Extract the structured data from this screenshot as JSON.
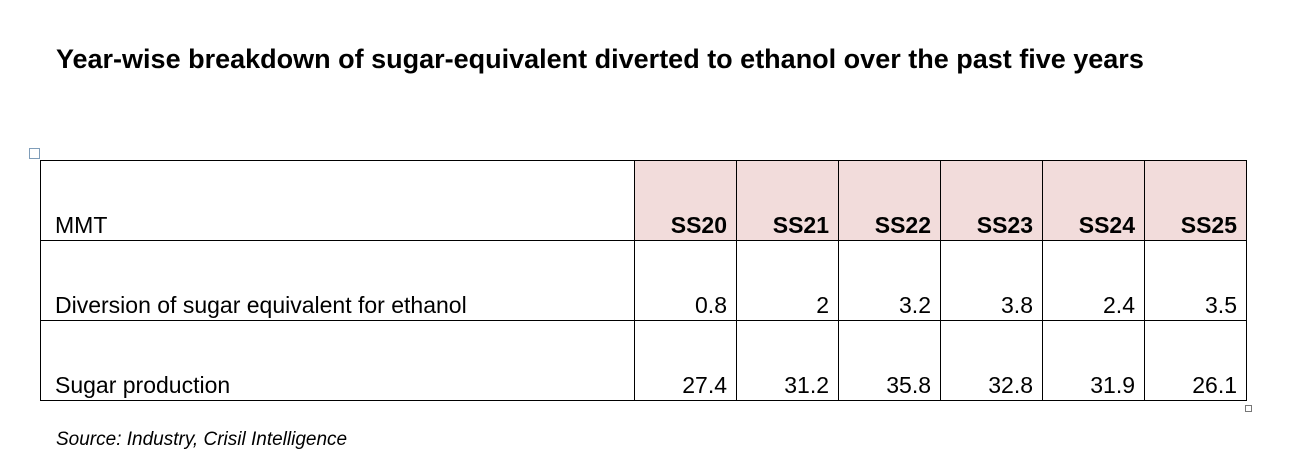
{
  "header": {
    "title": "Year-wise breakdown of sugar-equivalent diverted to ethanol over the past five years"
  },
  "table": {
    "columns": [
      "MMT",
      "SS20",
      "SS21",
      "SS22",
      "SS23",
      "SS24",
      "SS25"
    ],
    "rows": [
      [
        "Diversion of sugar equivalent for ethanol",
        0.8,
        2,
        3.2,
        3.8,
        2.4,
        3.5
      ],
      [
        "Sugar production",
        27.4,
        31.2,
        35.8,
        32.8,
        31.9,
        26.1
      ]
    ]
  },
  "footer": {
    "source": "Source: Industry,  Crisil Intelligence"
  }
}
